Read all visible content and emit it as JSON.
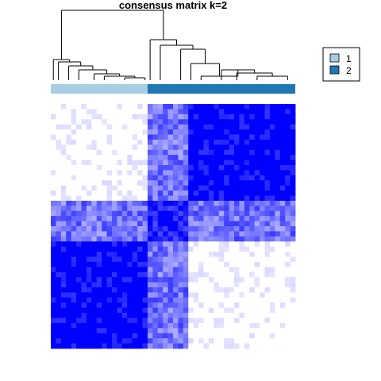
{
  "chart_data": {
    "type": "heatmap",
    "title": "consensus matrix k=2",
    "n_samples": 48,
    "cluster_sizes": [
      19,
      29
    ],
    "legend": {
      "placement": "top-right",
      "entries": [
        {
          "label": "1",
          "color": "#a6cee3"
        },
        {
          "label": "2",
          "color": "#1f78b4"
        }
      ]
    },
    "color_scale": {
      "low": "#ffffff",
      "high": "#0000ff",
      "range": [
        0,
        1
      ]
    },
    "blocks": [
      {
        "rows": "cluster 1",
        "cols": "cluster 1",
        "consensus": 0.05
      },
      {
        "rows": "cluster 1",
        "cols": "cluster 2",
        "consensus": 0.97
      },
      {
        "rows": "mixed",
        "cols": "mixed",
        "consensus": 0.55
      },
      {
        "rows": "cluster 2",
        "cols": "cluster 2",
        "consensus": 0.05
      }
    ],
    "dendrogram": true
  }
}
